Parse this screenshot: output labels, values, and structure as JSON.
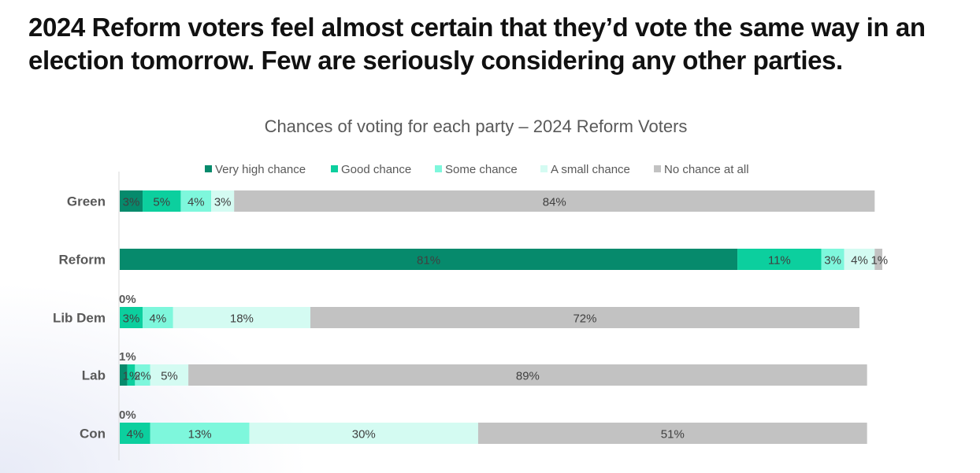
{
  "headline": "2024 Reform voters feel almost certain that they’d vote the same way in an election tomorrow. Few are seriously considering any other parties.",
  "chart_data": {
    "type": "bar",
    "orientation": "horizontal",
    "stacked": true,
    "title": "Chances of voting for each party – 2024 Reform Voters",
    "categories": [
      "Green",
      "Reform",
      "Lib Dem",
      "Lab",
      "Con"
    ],
    "series": [
      {
        "name": "Very high chance",
        "color": "#068a6c",
        "values": [
          3,
          81,
          0,
          1,
          0
        ],
        "labels": [
          "3%",
          "81%",
          "0%",
          "1%",
          "0%"
        ]
      },
      {
        "name": "Good chance",
        "color": "#0ccf9e",
        "values": [
          5,
          11,
          3,
          1,
          4
        ],
        "labels": [
          "5%",
          "11%",
          "3%",
          "1%",
          "4%"
        ]
      },
      {
        "name": "Some chance",
        "color": "#7ef7dc",
        "values": [
          4,
          3,
          4,
          2,
          13
        ],
        "labels": [
          "4%",
          "3%",
          "4%",
          "2%",
          "13%"
        ]
      },
      {
        "name": "A small chance",
        "color": "#d4fbf2",
        "values": [
          3,
          4,
          18,
          5,
          30
        ],
        "labels": [
          "3%",
          "4%",
          "18%",
          "5%",
          "30%"
        ]
      },
      {
        "name": "No chance at all",
        "color": "#c2c2c2",
        "values": [
          84,
          1,
          72,
          89,
          51
        ],
        "labels": [
          "84%",
          "1%",
          "72%",
          "89%",
          "51%"
        ]
      }
    ],
    "legend": "top",
    "grid": false
  }
}
